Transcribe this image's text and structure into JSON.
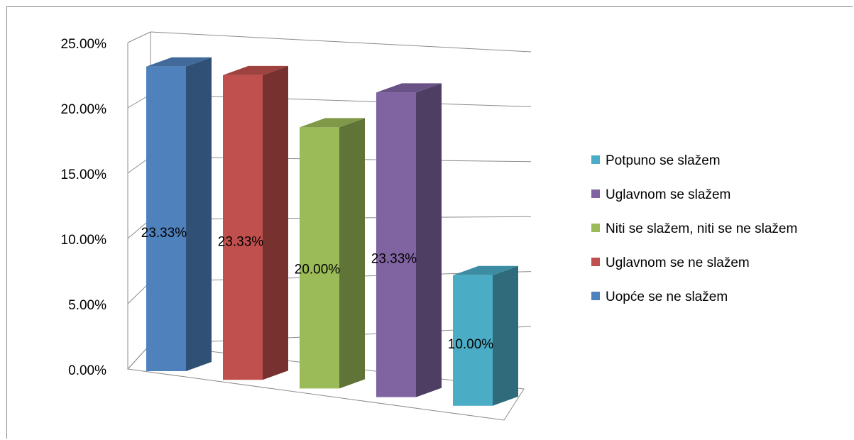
{
  "chart_data": {
    "type": "bar",
    "title": "",
    "xlabel": "",
    "ylabel": "",
    "ylim": [
      0,
      25
    ],
    "y_tick_labels": [
      "0.00%",
      "5.00%",
      "10.00%",
      "15.00%",
      "20.00%",
      "25.00%"
    ],
    "grid": true,
    "legend_position": "right",
    "categories": [
      "Uopće se ne slažem",
      "Uglavnom se ne slažem",
      "Niti se slažem, niti se ne slažem",
      "Uglavnom se slažem",
      "Potpuno se slažem"
    ],
    "values": [
      23.33,
      23.33,
      20.0,
      23.33,
      10.0
    ],
    "data_labels": [
      "23.33%",
      "23.33%",
      "20.00%",
      "23.33%",
      "10.00%"
    ],
    "colors": [
      "#4f81bd",
      "#c0504d",
      "#9bbb59",
      "#8064a2",
      "#4bacc6"
    ],
    "legend": [
      "Potpuno se slažem",
      "Uglavnom se slažem",
      "Niti se slažem, niti se ne slažem",
      "Uglavnom se ne slažem",
      "Uopće se ne slažem"
    ],
    "legend_colors": [
      "#4bacc6",
      "#8064a2",
      "#9bbb59",
      "#c0504d",
      "#4f81bd"
    ]
  }
}
